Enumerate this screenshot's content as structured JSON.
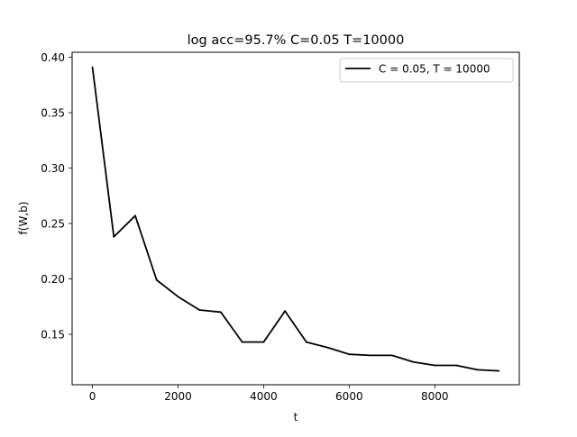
{
  "chart_data": {
    "type": "line",
    "title": "log acc=95.7% C=0.05 T=10000",
    "xlabel": "t",
    "ylabel": "f(W,b)",
    "xlim": [
      -475,
      9975
    ],
    "ylim": [
      0.1045,
      0.4045
    ],
    "xticks": [
      0,
      2000,
      4000,
      6000,
      8000
    ],
    "xtick_labels": [
      "0",
      "2000",
      "4000",
      "6000",
      "8000"
    ],
    "yticks": [
      0.15,
      0.2,
      0.25,
      0.3,
      0.35,
      0.4
    ],
    "ytick_labels": [
      "0.15",
      "0.20",
      "0.25",
      "0.30",
      "0.35",
      "0.40"
    ],
    "grid": false,
    "legend_position": "top-right",
    "series": [
      {
        "name": "C = 0.05, T = 10000",
        "color": "#000000",
        "x": [
          0,
          500,
          1000,
          1500,
          2000,
          2500,
          3000,
          3500,
          4000,
          4500,
          5000,
          5500,
          6000,
          6500,
          7000,
          7500,
          8000,
          8500,
          9000,
          9500
        ],
        "y": [
          0.391,
          0.238,
          0.257,
          0.199,
          0.184,
          0.172,
          0.17,
          0.143,
          0.143,
          0.171,
          0.143,
          0.138,
          0.132,
          0.131,
          0.131,
          0.125,
          0.122,
          0.122,
          0.118,
          0.117
        ]
      }
    ]
  }
}
